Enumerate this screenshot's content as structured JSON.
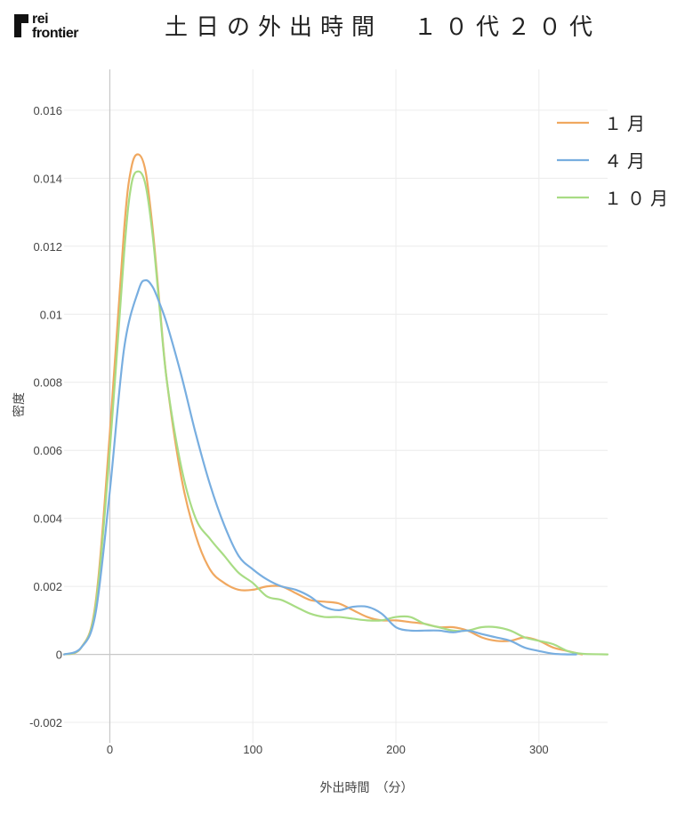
{
  "logo": {
    "line1": "rei",
    "line2": "frontier"
  },
  "chart_data": {
    "type": "line",
    "title": "土日の外出時間　１０代２０代",
    "xlabel": "外出時間　（分）",
    "ylabel": "密度",
    "xlim": [
      -32,
      348
    ],
    "ylim": [
      -0.0026,
      0.0172
    ],
    "xticks": [
      0,
      100,
      200,
      300
    ],
    "yticks": [
      -0.002,
      0,
      0.002,
      0.004,
      0.006,
      0.008,
      0.01,
      0.012,
      0.014,
      0.016
    ],
    "ytick_labels": [
      "-0.002",
      "0",
      "0.002",
      "0.004",
      "0.006",
      "0.008",
      "0.01",
      "0.012",
      "0.014",
      "0.016"
    ],
    "grid": true,
    "legend_position": "top-right",
    "series": [
      {
        "name": "１月",
        "color": "#f0a860",
        "x": [
          -32,
          -20,
          -10,
          0,
          10,
          15,
          20,
          25,
          30,
          35,
          40,
          50,
          60,
          70,
          80,
          90,
          100,
          110,
          120,
          130,
          140,
          150,
          160,
          170,
          180,
          190,
          200,
          210,
          220,
          230,
          240,
          250,
          260,
          270,
          280,
          290,
          300,
          310,
          320,
          330
        ],
        "y": [
          0.0,
          0.0002,
          0.0015,
          0.0065,
          0.0125,
          0.0143,
          0.0147,
          0.0142,
          0.0125,
          0.0102,
          0.008,
          0.0052,
          0.0035,
          0.0025,
          0.0021,
          0.0019,
          0.0019,
          0.002,
          0.002,
          0.0018,
          0.0016,
          0.00155,
          0.0015,
          0.0013,
          0.0011,
          0.001,
          0.001,
          0.00095,
          0.0009,
          0.0008,
          0.0008,
          0.0007,
          0.0005,
          0.0004,
          0.0004,
          0.0005,
          0.0004,
          0.0002,
          0.0001,
          0.0
        ]
      },
      {
        "name": "４月",
        "color": "#78aee0",
        "x": [
          -32,
          -20,
          -10,
          0,
          10,
          20,
          25,
          30,
          35,
          40,
          50,
          60,
          70,
          80,
          90,
          100,
          110,
          120,
          130,
          140,
          150,
          160,
          170,
          180,
          190,
          200,
          210,
          220,
          230,
          240,
          250,
          260,
          270,
          280,
          290,
          300,
          310,
          320,
          326
        ],
        "y": [
          0.0,
          0.0002,
          0.0012,
          0.0048,
          0.009,
          0.0107,
          0.011,
          0.0108,
          0.0103,
          0.0097,
          0.0082,
          0.0065,
          0.005,
          0.0038,
          0.0029,
          0.0025,
          0.0022,
          0.002,
          0.0019,
          0.0017,
          0.0014,
          0.0013,
          0.0014,
          0.0014,
          0.0012,
          0.0008,
          0.0007,
          0.0007,
          0.0007,
          0.00065,
          0.0007,
          0.0006,
          0.0005,
          0.0004,
          0.0002,
          0.0001,
          2e-05,
          0.0,
          0.0
        ]
      },
      {
        "name": "１０月",
        "color": "#a8dc84",
        "x": [
          -32,
          -20,
          -10,
          0,
          10,
          15,
          20,
          25,
          30,
          35,
          40,
          50,
          60,
          70,
          80,
          90,
          100,
          110,
          120,
          130,
          140,
          150,
          160,
          170,
          180,
          190,
          200,
          210,
          220,
          230,
          240,
          250,
          260,
          270,
          280,
          290,
          300,
          310,
          320,
          330,
          348
        ],
        "y": [
          0.0,
          0.0002,
          0.0014,
          0.006,
          0.0118,
          0.0138,
          0.0142,
          0.0138,
          0.0123,
          0.0101,
          0.008,
          0.0055,
          0.004,
          0.0034,
          0.0029,
          0.0024,
          0.0021,
          0.0017,
          0.0016,
          0.0014,
          0.0012,
          0.0011,
          0.0011,
          0.00105,
          0.001,
          0.001,
          0.0011,
          0.0011,
          0.0009,
          0.0008,
          0.0007,
          0.0007,
          0.0008,
          0.0008,
          0.0007,
          0.0005,
          0.0004,
          0.0003,
          0.0001,
          2e-05,
          0.0
        ]
      }
    ]
  }
}
